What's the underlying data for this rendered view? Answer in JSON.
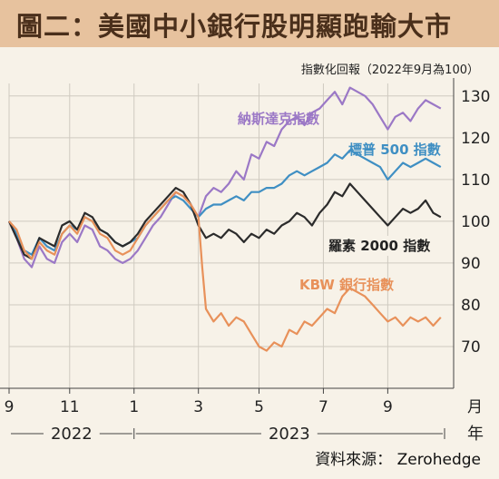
{
  "title": "圖二：美國中小銀行股明顯跑輸大市",
  "subtitle": "指數化回報（2022年9月為100）",
  "source": "資料來源： Zerohedge",
  "colors": {
    "nasdaq": "#9b78c6",
    "sp500": "#3f8fc3",
    "russell": "#2b2b2b",
    "kbw": "#e8915a",
    "header": "#e7c29e",
    "grid": "#cfcac0"
  },
  "chart_data": {
    "type": "line",
    "ylim": [
      60,
      133
    ],
    "yticks": [
      "70",
      "80",
      "90",
      "100",
      "110",
      "120",
      "130"
    ],
    "x_range": [
      2022.67,
      2023.82
    ],
    "month_ticks": [
      {
        "x": 2022.67,
        "label": "9"
      },
      {
        "x": 2022.83,
        "label": "11"
      },
      {
        "x": 2023.0,
        "label": "1"
      },
      {
        "x": 2023.17,
        "label": "3"
      },
      {
        "x": 2023.33,
        "label": "5"
      },
      {
        "x": 2023.5,
        "label": "7"
      },
      {
        "x": 2023.67,
        "label": "9"
      }
    ],
    "month_unit": "月",
    "year_unit": "年",
    "years": [
      {
        "label": "2022",
        "from": 2022.67,
        "to": 2023.0
      },
      {
        "label": "2023",
        "from": 2023.0,
        "to": 2023.82
      }
    ],
    "series": [
      {
        "name": "納斯達克指數",
        "key": "nasdaq",
        "x": [
          2022.67,
          2022.69,
          2022.71,
          2022.73,
          2022.75,
          2022.77,
          2022.79,
          2022.81,
          2022.83,
          2022.85,
          2022.87,
          2022.89,
          2022.91,
          2022.93,
          2022.95,
          2022.97,
          2022.99,
          2023.01,
          2023.03,
          2023.05,
          2023.07,
          2023.09,
          2023.11,
          2023.13,
          2023.15,
          2023.17,
          2023.19,
          2023.21,
          2023.23,
          2023.25,
          2023.27,
          2023.29,
          2023.31,
          2023.33,
          2023.35,
          2023.37,
          2023.39,
          2023.41,
          2023.43,
          2023.45,
          2023.47,
          2023.49,
          2023.51,
          2023.53,
          2023.55,
          2023.57,
          2023.59,
          2023.61,
          2023.63,
          2023.65,
          2023.67,
          2023.69,
          2023.71,
          2023.73,
          2023.75,
          2023.77,
          2023.79,
          2023.81
        ],
        "values": [
          100,
          96,
          91,
          89,
          94,
          91,
          90,
          95,
          97,
          95,
          99,
          98,
          94,
          93,
          91,
          90,
          91,
          93,
          96,
          99,
          101,
          104,
          107,
          106,
          104,
          101,
          106,
          108,
          107,
          109,
          112,
          110,
          116,
          115,
          119,
          118,
          122,
          124,
          125,
          123,
          126,
          127,
          129,
          131,
          128,
          132,
          131,
          130,
          128,
          125,
          122,
          125,
          126,
          124,
          127,
          129,
          128,
          127
        ]
      },
      {
        "name": "標普 500 指數",
        "key": "sp500",
        "x": [
          2022.67,
          2022.69,
          2022.71,
          2022.73,
          2022.75,
          2022.77,
          2022.79,
          2022.81,
          2022.83,
          2022.85,
          2022.87,
          2022.89,
          2022.91,
          2022.93,
          2022.95,
          2022.97,
          2022.99,
          2023.01,
          2023.03,
          2023.05,
          2023.07,
          2023.09,
          2023.11,
          2023.13,
          2023.15,
          2023.17,
          2023.19,
          2023.21,
          2023.23,
          2023.25,
          2023.27,
          2023.29,
          2023.31,
          2023.33,
          2023.35,
          2023.37,
          2023.39,
          2023.41,
          2023.43,
          2023.45,
          2023.47,
          2023.49,
          2023.51,
          2023.53,
          2023.55,
          2023.57,
          2023.59,
          2023.61,
          2023.63,
          2023.65,
          2023.67,
          2023.69,
          2023.71,
          2023.73,
          2023.75,
          2023.77,
          2023.79,
          2023.81
        ],
        "values": [
          100,
          97,
          93,
          92,
          96,
          94,
          93,
          97,
          99,
          98,
          101,
          100,
          98,
          97,
          95,
          94,
          95,
          96,
          99,
          101,
          103,
          105,
          106,
          105,
          103,
          101,
          103,
          104,
          104,
          105,
          106,
          105,
          107,
          107,
          108,
          108,
          109,
          111,
          112,
          111,
          112,
          113,
          114,
          116,
          115,
          117,
          116,
          115,
          114,
          113,
          110,
          112,
          114,
          113,
          114,
          115,
          114,
          113
        ]
      },
      {
        "name": "羅素 2000 指數",
        "key": "russell",
        "x": [
          2022.67,
          2022.69,
          2022.71,
          2022.73,
          2022.75,
          2022.77,
          2022.79,
          2022.81,
          2022.83,
          2022.85,
          2022.87,
          2022.89,
          2022.91,
          2022.93,
          2022.95,
          2022.97,
          2022.99,
          2023.01,
          2023.03,
          2023.05,
          2023.07,
          2023.09,
          2023.11,
          2023.13,
          2023.15,
          2023.17,
          2023.19,
          2023.21,
          2023.23,
          2023.25,
          2023.27,
          2023.29,
          2023.31,
          2023.33,
          2023.35,
          2023.37,
          2023.39,
          2023.41,
          2023.43,
          2023.45,
          2023.47,
          2023.49,
          2023.51,
          2023.53,
          2023.55,
          2023.57,
          2023.59,
          2023.61,
          2023.63,
          2023.65,
          2023.67,
          2023.69,
          2023.71,
          2023.73,
          2023.75,
          2023.77,
          2023.79,
          2023.81
        ],
        "values": [
          100,
          96,
          92,
          91,
          96,
          95,
          94,
          99,
          100,
          98,
          102,
          101,
          98,
          97,
          95,
          94,
          95,
          97,
          100,
          102,
          104,
          106,
          108,
          107,
          104,
          99,
          96,
          97,
          96,
          98,
          97,
          95,
          97,
          96,
          98,
          97,
          99,
          100,
          102,
          101,
          99,
          102,
          104,
          107,
          106,
          109,
          107,
          105,
          103,
          101,
          99,
          101,
          103,
          102,
          103,
          105,
          102,
          101
        ]
      },
      {
        "name": "KBW 銀行指數",
        "key": "kbw",
        "x": [
          2022.67,
          2022.69,
          2022.71,
          2022.73,
          2022.75,
          2022.77,
          2022.79,
          2022.81,
          2022.83,
          2022.85,
          2022.87,
          2022.89,
          2022.91,
          2022.93,
          2022.95,
          2022.97,
          2022.99,
          2023.01,
          2023.03,
          2023.05,
          2023.07,
          2023.09,
          2023.11,
          2023.13,
          2023.15,
          2023.17,
          2023.18,
          2023.19,
          2023.21,
          2023.23,
          2023.25,
          2023.27,
          2023.29,
          2023.31,
          2023.33,
          2023.35,
          2023.37,
          2023.39,
          2023.41,
          2023.43,
          2023.45,
          2023.47,
          2023.49,
          2023.51,
          2023.53,
          2023.55,
          2023.57,
          2023.59,
          2023.61,
          2023.63,
          2023.65,
          2023.67,
          2023.69,
          2023.71,
          2023.73,
          2023.75,
          2023.77,
          2023.79,
          2023.81
        ],
        "values": [
          100,
          98,
          93,
          91,
          95,
          93,
          92,
          97,
          99,
          97,
          101,
          100,
          97,
          96,
          93,
          92,
          93,
          96,
          99,
          101,
          103,
          105,
          107,
          106,
          104,
          101,
          89,
          79,
          76,
          78,
          75,
          77,
          76,
          73,
          70,
          69,
          71,
          70,
          74,
          73,
          76,
          75,
          77,
          79,
          78,
          82,
          84,
          83,
          82,
          80,
          78,
          76,
          77,
          75,
          77,
          76,
          77,
          75,
          77
        ]
      }
    ],
    "xlabel": "",
    "ylabel": ""
  }
}
